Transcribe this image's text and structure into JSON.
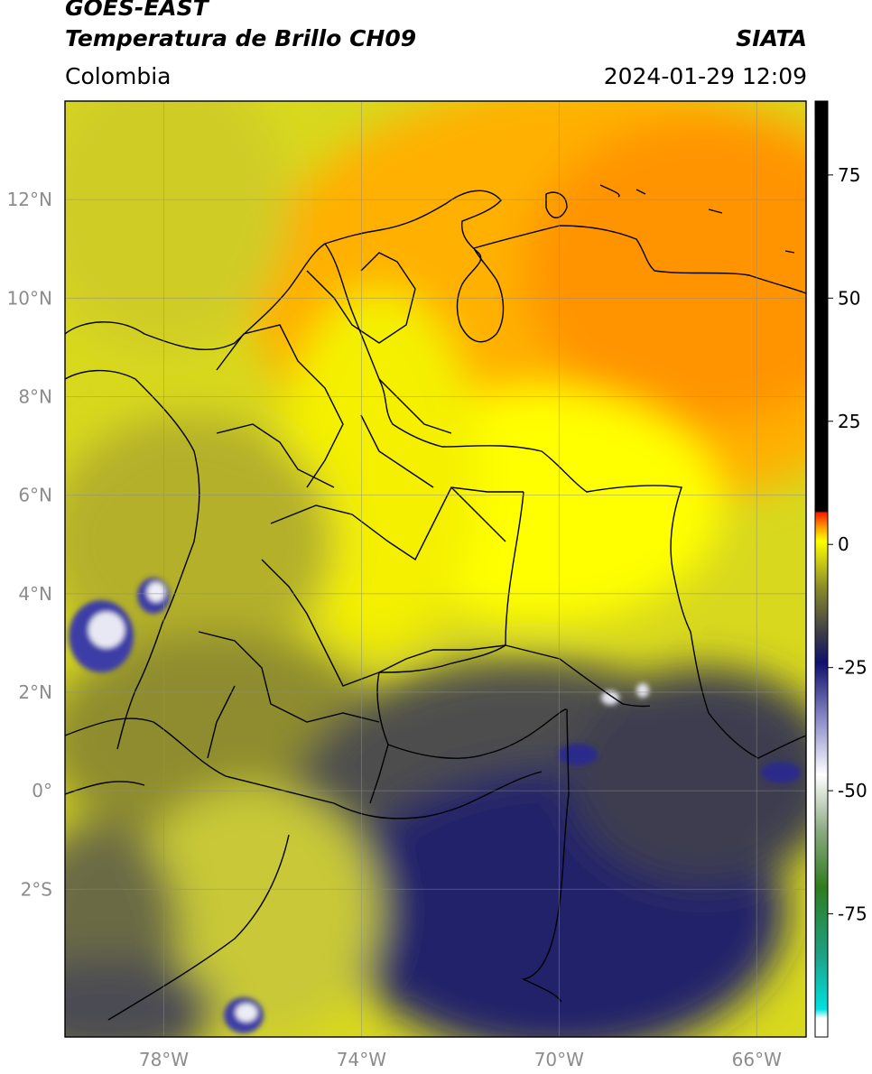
{
  "header": {
    "line1": "GOES-EAST",
    "line2": "Temperatura de Brillo CH09",
    "region": "Colombia",
    "agency": "SIATA",
    "datetime": "2024-01-29 12:09"
  },
  "map": {
    "lon_range": [
      -80,
      -65
    ],
    "lat_range": [
      -5,
      14
    ],
    "lon_ticks": [
      {
        "value": -78,
        "label": "78°W"
      },
      {
        "value": -74,
        "label": "74°W"
      },
      {
        "value": -70,
        "label": "70°W"
      },
      {
        "value": -66,
        "label": "66°W"
      }
    ],
    "lat_ticks": [
      {
        "value": 12,
        "label": "12°N"
      },
      {
        "value": 10,
        "label": "10°N"
      },
      {
        "value": 8,
        "label": "8°N"
      },
      {
        "value": 6,
        "label": "6°N"
      },
      {
        "value": 4,
        "label": "4°N"
      },
      {
        "value": 2,
        "label": "2°N"
      },
      {
        "value": 0,
        "label": "0°"
      },
      {
        "value": -2,
        "label": "2°S"
      }
    ],
    "grid": true
  },
  "colorbar": {
    "range": [
      -100,
      90
    ],
    "ticks": [
      {
        "value": 75,
        "label": "75"
      },
      {
        "value": 50,
        "label": "50"
      },
      {
        "value": 25,
        "label": "25"
      },
      {
        "value": 0,
        "label": "0"
      },
      {
        "value": -25,
        "label": "-25"
      },
      {
        "value": -50,
        "label": "-50"
      },
      {
        "value": -75,
        "label": "-75"
      }
    ],
    "colors": {
      "black": "#000000",
      "red": "#ff1a00",
      "orange": "#ff9a00",
      "yellow": "#ffff00",
      "olive": "#8a8a2a",
      "gray": "#3a3a4a",
      "navy": "#10106e",
      "white": "#ffffff",
      "green": "#2e7d1e",
      "cyan": "#00e0e0"
    }
  },
  "colors": {
    "warm_orange": "#ff9f00",
    "bright_yellow": "#ffff00",
    "olive_yellow": "#c8c832",
    "dark_navy": "#14145a",
    "slate": "#3c3c50"
  }
}
